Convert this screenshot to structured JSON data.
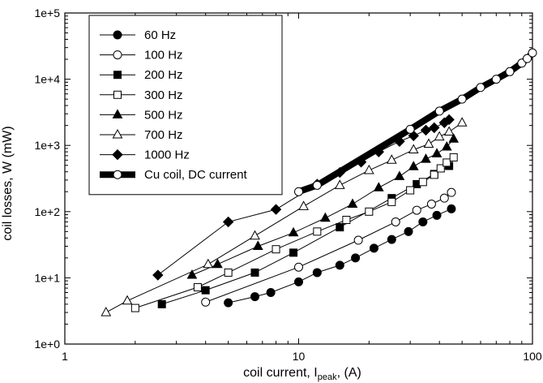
{
  "chart_data": {
    "type": "scatter",
    "title": "",
    "xlabel_main": "coil current, I",
    "xlabel_sub": "peak",
    "xlabel_tail": ", (A)",
    "ylabel": "coil losses, W (mW)",
    "x_scale": "log",
    "y_scale": "log",
    "xlim": [
      1,
      100
    ],
    "ylim": [
      1,
      100000
    ],
    "x_ticks": [
      {
        "value": 1,
        "label": "1"
      },
      {
        "value": 10,
        "label": "10"
      },
      {
        "value": 100,
        "label": "100"
      }
    ],
    "y_ticks": [
      {
        "value": 1,
        "label": "1e+0"
      },
      {
        "value": 10,
        "label": "1e+1"
      },
      {
        "value": 100,
        "label": "1e+2"
      },
      {
        "value": 1000,
        "label": "1e+3"
      },
      {
        "value": 10000,
        "label": "1e+4"
      },
      {
        "value": 100000,
        "label": "1e+5"
      }
    ],
    "grid": false,
    "legend_position": "top-left",
    "series": [
      {
        "name": "60 Hz",
        "marker": "filled-circle",
        "x": [
          5.0,
          6.5,
          7.6,
          10.0,
          12.0,
          15.0,
          17.5,
          21.0,
          25.0,
          29.5,
          34.0,
          39.0,
          45.0
        ],
        "y": [
          4.2,
          5.2,
          6.0,
          8.7,
          12.0,
          15.5,
          20.0,
          28.0,
          38.0,
          50.0,
          70.0,
          88.0,
          110.0
        ]
      },
      {
        "name": "100 Hz",
        "marker": "open-circle",
        "x": [
          4.0,
          10.0,
          18.0,
          26.0,
          32.0,
          37.0,
          42.0,
          45.0
        ],
        "y": [
          4.3,
          14.5,
          37.0,
          70.0,
          105.0,
          130.0,
          160.0,
          195.0
        ]
      },
      {
        "name": "200 Hz",
        "marker": "filled-square",
        "x": [
          2.6,
          4.0,
          6.5,
          9.5,
          15.0,
          25.0,
          32.0,
          38.0,
          44.0
        ],
        "y": [
          4.0,
          6.5,
          12.0,
          24.0,
          58.0,
          160.0,
          260.0,
          370.0,
          490.0
        ]
      },
      {
        "name": "300 Hz",
        "marker": "open-square",
        "x": [
          2.0,
          3.7,
          5.0,
          8.0,
          12.0,
          16.0,
          20.0,
          25.0,
          30.0,
          34.0,
          38.0,
          40.5,
          43.0,
          46.0
        ],
        "y": [
          3.5,
          7.2,
          12.0,
          27.0,
          50.0,
          75.0,
          100.0,
          140.0,
          210.0,
          280.0,
          360.0,
          450.0,
          550.0,
          660.0
        ]
      },
      {
        "name": "500 Hz",
        "marker": "filled-triangle",
        "x": [
          3.5,
          4.5,
          6.7,
          9.5,
          13.0,
          17.0,
          22.0,
          27.0,
          31.0,
          35.0,
          39.0,
          43.0,
          46.0
        ],
        "y": [
          11.0,
          16.0,
          30.0,
          48.0,
          80.0,
          130.0,
          230.0,
          340.0,
          480.0,
          620.0,
          750.0,
          950.0,
          1250.0
        ]
      },
      {
        "name": "700 Hz",
        "marker": "open-triangle",
        "x": [
          1.5,
          1.85,
          4.1,
          6.5,
          10.5,
          15.0,
          20.0,
          25.0,
          31.0,
          36.0,
          40.0,
          44.0,
          50.0
        ],
        "y": [
          3.0,
          4.5,
          16.0,
          43.0,
          120.0,
          250.0,
          420.0,
          600.0,
          860.0,
          1050.0,
          1350.0,
          1600.0,
          2200.0
        ]
      },
      {
        "name": "1000 Hz",
        "marker": "filled-diamond",
        "x": [
          2.5,
          5.0,
          8.0,
          12.0,
          15.0,
          18.5,
          22.0,
          27.0,
          31.0,
          35.0,
          38.0,
          42.0,
          44.0
        ],
        "y": [
          11.0,
          70.0,
          108.0,
          260.0,
          390.0,
          560.0,
          800.0,
          1150.0,
          1400.0,
          1700.0,
          1850.0,
          2200.0,
          2450.0
        ]
      },
      {
        "name": "Cu coil, DC current",
        "marker": "open-circle",
        "thick_line": true,
        "x": [
          10.0,
          12.0,
          30.0,
          40.0,
          50.0,
          60.0,
          70.0,
          80.0,
          90.0,
          95.0,
          100.0
        ],
        "y": [
          200.0,
          250.0,
          1750.0,
          3300.0,
          5000.0,
          7500.0,
          10000.0,
          13000.0,
          17500.0,
          20500.0,
          25000.0
        ]
      }
    ]
  }
}
